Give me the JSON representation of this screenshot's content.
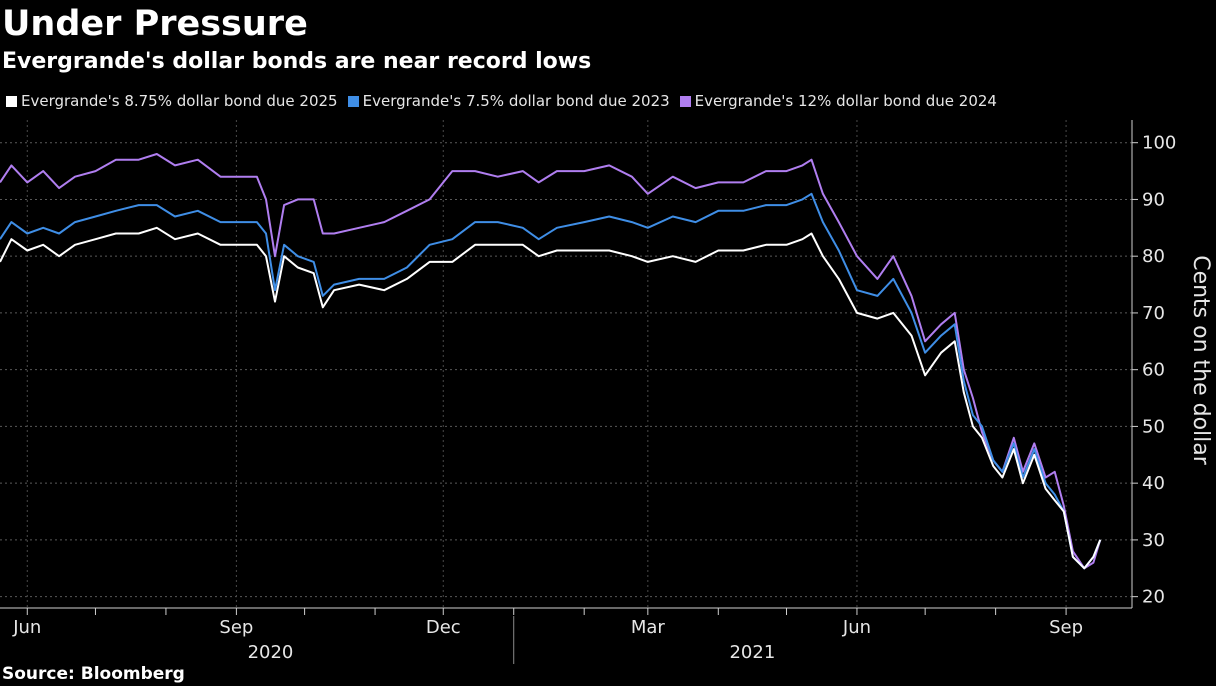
{
  "chart_data": {
    "type": "line",
    "title": "Under Pressure",
    "subtitle": "Evergrande's dollar bonds are near record lows",
    "ylabel": "Cents on the dollar",
    "ylim": [
      18,
      104
    ],
    "yticks": [
      20,
      30,
      40,
      50,
      60,
      70,
      80,
      90,
      100
    ],
    "xlim": [
      "2020-05-20",
      "2021-09-30"
    ],
    "x_tick_marks": [
      "2020-06-01",
      "2020-07-01",
      "2020-08-01",
      "2020-09-01",
      "2020-10-01",
      "2020-11-01",
      "2020-12-01",
      "2021-01-01",
      "2021-02-01",
      "2021-03-01",
      "2021-04-01",
      "2021-05-01",
      "2021-06-01",
      "2021-07-01",
      "2021-08-01",
      "2021-09-01"
    ],
    "x_month_labels": [
      {
        "date": "2020-06-01",
        "label": "Jun"
      },
      {
        "date": "2020-09-01",
        "label": "Sep"
      },
      {
        "date": "2020-12-01",
        "label": "Dec"
      },
      {
        "date": "2021-03-01",
        "label": "Mar"
      },
      {
        "date": "2021-06-01",
        "label": "Jun"
      },
      {
        "date": "2021-09-01",
        "label": "Sep"
      }
    ],
    "x_year_labels": [
      {
        "date": "2020-09-16",
        "label": "2020"
      },
      {
        "date": "2021-04-16",
        "label": "2021"
      }
    ],
    "year_divider": "2021-01-01",
    "grid": true,
    "legend_position": "top-left",
    "series": [
      {
        "name": "Evergrande's 8.75% dollar bond due 2025",
        "color": "#ffffff",
        "points": [
          [
            "2020-05-20",
            79
          ],
          [
            "2020-05-25",
            83
          ],
          [
            "2020-06-01",
            81
          ],
          [
            "2020-06-08",
            82
          ],
          [
            "2020-06-15",
            80
          ],
          [
            "2020-06-22",
            82
          ],
          [
            "2020-07-01",
            83
          ],
          [
            "2020-07-10",
            84
          ],
          [
            "2020-07-20",
            84
          ],
          [
            "2020-07-28",
            85
          ],
          [
            "2020-08-05",
            83
          ],
          [
            "2020-08-15",
            84
          ],
          [
            "2020-08-25",
            82
          ],
          [
            "2020-09-01",
            82
          ],
          [
            "2020-09-10",
            82
          ],
          [
            "2020-09-14",
            80
          ],
          [
            "2020-09-18",
            72
          ],
          [
            "2020-09-22",
            80
          ],
          [
            "2020-09-28",
            78
          ],
          [
            "2020-10-05",
            77
          ],
          [
            "2020-10-09",
            71
          ],
          [
            "2020-10-14",
            74
          ],
          [
            "2020-10-25",
            75
          ],
          [
            "2020-11-05",
            74
          ],
          [
            "2020-11-15",
            76
          ],
          [
            "2020-11-25",
            79
          ],
          [
            "2020-12-05",
            79
          ],
          [
            "2020-12-15",
            82
          ],
          [
            "2020-12-25",
            82
          ],
          [
            "2021-01-05",
            82
          ],
          [
            "2021-01-12",
            80
          ],
          [
            "2021-01-20",
            81
          ],
          [
            "2021-02-01",
            81
          ],
          [
            "2021-02-12",
            81
          ],
          [
            "2021-02-22",
            80
          ],
          [
            "2021-03-01",
            79
          ],
          [
            "2021-03-12",
            80
          ],
          [
            "2021-03-22",
            79
          ],
          [
            "2021-04-01",
            81
          ],
          [
            "2021-04-12",
            81
          ],
          [
            "2021-04-22",
            82
          ],
          [
            "2021-05-01",
            82
          ],
          [
            "2021-05-08",
            83
          ],
          [
            "2021-05-12",
            84
          ],
          [
            "2021-05-17",
            80
          ],
          [
            "2021-05-24",
            76
          ],
          [
            "2021-06-01",
            70
          ],
          [
            "2021-06-10",
            69
          ],
          [
            "2021-06-17",
            70
          ],
          [
            "2021-06-25",
            66
          ],
          [
            "2021-07-01",
            59
          ],
          [
            "2021-07-08",
            63
          ],
          [
            "2021-07-14",
            65
          ],
          [
            "2021-07-18",
            56
          ],
          [
            "2021-07-22",
            50
          ],
          [
            "2021-07-26",
            48
          ],
          [
            "2021-07-31",
            43
          ],
          [
            "2021-08-04",
            41
          ],
          [
            "2021-08-09",
            46
          ],
          [
            "2021-08-13",
            40
          ],
          [
            "2021-08-18",
            45
          ],
          [
            "2021-08-23",
            39
          ],
          [
            "2021-08-27",
            37
          ],
          [
            "2021-08-31",
            35
          ],
          [
            "2021-09-04",
            27
          ],
          [
            "2021-09-09",
            25
          ],
          [
            "2021-09-13",
            27
          ],
          [
            "2021-09-16",
            30
          ]
        ]
      },
      {
        "name": "Evergrande's 7.5% dollar bond due 2023",
        "color": "#3f8ee6",
        "points": [
          [
            "2020-05-20",
            83
          ],
          [
            "2020-05-25",
            86
          ],
          [
            "2020-06-01",
            84
          ],
          [
            "2020-06-08",
            85
          ],
          [
            "2020-06-15",
            84
          ],
          [
            "2020-06-22",
            86
          ],
          [
            "2020-07-01",
            87
          ],
          [
            "2020-07-10",
            88
          ],
          [
            "2020-07-20",
            89
          ],
          [
            "2020-07-28",
            89
          ],
          [
            "2020-08-05",
            87
          ],
          [
            "2020-08-15",
            88
          ],
          [
            "2020-08-25",
            86
          ],
          [
            "2020-09-01",
            86
          ],
          [
            "2020-09-10",
            86
          ],
          [
            "2020-09-14",
            84
          ],
          [
            "2020-09-18",
            74
          ],
          [
            "2020-09-22",
            82
          ],
          [
            "2020-09-28",
            80
          ],
          [
            "2020-10-05",
            79
          ],
          [
            "2020-10-09",
            73
          ],
          [
            "2020-10-14",
            75
          ],
          [
            "2020-10-25",
            76
          ],
          [
            "2020-11-05",
            76
          ],
          [
            "2020-11-15",
            78
          ],
          [
            "2020-11-25",
            82
          ],
          [
            "2020-12-05",
            83
          ],
          [
            "2020-12-15",
            86
          ],
          [
            "2020-12-25",
            86
          ],
          [
            "2021-01-05",
            85
          ],
          [
            "2021-01-12",
            83
          ],
          [
            "2021-01-20",
            85
          ],
          [
            "2021-02-01",
            86
          ],
          [
            "2021-02-12",
            87
          ],
          [
            "2021-02-22",
            86
          ],
          [
            "2021-03-01",
            85
          ],
          [
            "2021-03-12",
            87
          ],
          [
            "2021-03-22",
            86
          ],
          [
            "2021-04-01",
            88
          ],
          [
            "2021-04-12",
            88
          ],
          [
            "2021-04-22",
            89
          ],
          [
            "2021-05-01",
            89
          ],
          [
            "2021-05-08",
            90
          ],
          [
            "2021-05-12",
            91
          ],
          [
            "2021-05-17",
            86
          ],
          [
            "2021-05-24",
            81
          ],
          [
            "2021-06-01",
            74
          ],
          [
            "2021-06-10",
            73
          ],
          [
            "2021-06-17",
            76
          ],
          [
            "2021-06-25",
            70
          ],
          [
            "2021-07-01",
            63
          ],
          [
            "2021-07-08",
            66
          ],
          [
            "2021-07-14",
            68
          ],
          [
            "2021-07-18",
            58
          ],
          [
            "2021-07-22",
            52
          ],
          [
            "2021-07-26",
            50
          ],
          [
            "2021-07-31",
            44
          ],
          [
            "2021-08-04",
            42
          ],
          [
            "2021-08-09",
            47
          ],
          [
            "2021-08-13",
            41
          ],
          [
            "2021-08-18",
            46
          ],
          [
            "2021-08-23",
            40
          ],
          [
            "2021-08-27",
            38
          ],
          [
            "2021-08-31",
            35
          ],
          [
            "2021-09-04",
            27
          ],
          [
            "2021-09-09",
            25
          ],
          [
            "2021-09-13",
            27
          ],
          [
            "2021-09-16",
            30
          ]
        ]
      },
      {
        "name": "Evergrande's 12% dollar bond due 2024",
        "color": "#b07ef0",
        "points": [
          [
            "2020-05-20",
            93
          ],
          [
            "2020-05-25",
            96
          ],
          [
            "2020-06-01",
            93
          ],
          [
            "2020-06-08",
            95
          ],
          [
            "2020-06-15",
            92
          ],
          [
            "2020-06-22",
            94
          ],
          [
            "2020-07-01",
            95
          ],
          [
            "2020-07-10",
            97
          ],
          [
            "2020-07-20",
            97
          ],
          [
            "2020-07-28",
            98
          ],
          [
            "2020-08-05",
            96
          ],
          [
            "2020-08-15",
            97
          ],
          [
            "2020-08-25",
            94
          ],
          [
            "2020-09-01",
            94
          ],
          [
            "2020-09-10",
            94
          ],
          [
            "2020-09-14",
            90
          ],
          [
            "2020-09-18",
            80
          ],
          [
            "2020-09-22",
            89
          ],
          [
            "2020-09-28",
            90
          ],
          [
            "2020-10-05",
            90
          ],
          [
            "2020-10-09",
            84
          ],
          [
            "2020-10-14",
            84
          ],
          [
            "2020-10-25",
            85
          ],
          [
            "2020-11-05",
            86
          ],
          [
            "2020-11-15",
            88
          ],
          [
            "2020-11-25",
            90
          ],
          [
            "2020-12-05",
            95
          ],
          [
            "2020-12-15",
            95
          ],
          [
            "2020-12-25",
            94
          ],
          [
            "2021-01-05",
            95
          ],
          [
            "2021-01-12",
            93
          ],
          [
            "2021-01-20",
            95
          ],
          [
            "2021-02-01",
            95
          ],
          [
            "2021-02-12",
            96
          ],
          [
            "2021-02-22",
            94
          ],
          [
            "2021-03-01",
            91
          ],
          [
            "2021-03-12",
            94
          ],
          [
            "2021-03-22",
            92
          ],
          [
            "2021-04-01",
            93
          ],
          [
            "2021-04-12",
            93
          ],
          [
            "2021-04-22",
            95
          ],
          [
            "2021-05-01",
            95
          ],
          [
            "2021-05-08",
            96
          ],
          [
            "2021-05-12",
            97
          ],
          [
            "2021-05-17",
            91
          ],
          [
            "2021-05-24",
            86
          ],
          [
            "2021-06-01",
            80
          ],
          [
            "2021-06-10",
            76
          ],
          [
            "2021-06-17",
            80
          ],
          [
            "2021-06-25",
            73
          ],
          [
            "2021-07-01",
            65
          ],
          [
            "2021-07-08",
            68
          ],
          [
            "2021-07-14",
            70
          ],
          [
            "2021-07-18",
            60
          ],
          [
            "2021-07-22",
            55
          ],
          [
            "2021-07-26",
            49
          ],
          [
            "2021-07-31",
            44
          ],
          [
            "2021-08-04",
            42
          ],
          [
            "2021-08-09",
            48
          ],
          [
            "2021-08-13",
            42
          ],
          [
            "2021-08-18",
            47
          ],
          [
            "2021-08-23",
            41
          ],
          [
            "2021-08-27",
            42
          ],
          [
            "2021-08-31",
            36
          ],
          [
            "2021-09-04",
            28
          ],
          [
            "2021-09-09",
            25
          ],
          [
            "2021-09-13",
            26
          ],
          [
            "2021-09-16",
            30
          ]
        ]
      }
    ]
  },
  "source": "Source: Bloomberg"
}
